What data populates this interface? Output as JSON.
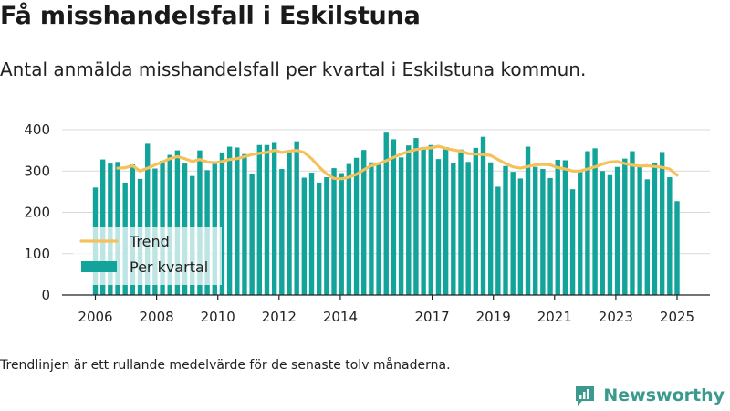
{
  "header": {
    "title": "Få misshandelsfall i Eskilstuna",
    "subtitle": "Antal anmälda misshandelsfall per kvartal i Eskilstuna kommun."
  },
  "footnote": "Trendlinjen är ett rullande medelvärde för de senaste tolv månaderna.",
  "brand": {
    "name": "Newsworthy",
    "icon": "newsworthy-logo-icon",
    "color": "#3a9a8d"
  },
  "colors": {
    "bar": "#12a39a",
    "trend": "#f5c15a",
    "grid": "#d9d9d9",
    "axis": "#222222"
  },
  "chart_data": {
    "type": "bar",
    "title": "",
    "xlabel": "",
    "ylabel": "",
    "ylim": [
      0,
      400
    ],
    "yticks": [
      "0",
      "100",
      "200",
      "300",
      "400"
    ],
    "xticks": [
      "2006",
      "2008",
      "2010",
      "2012",
      "2014",
      "2017",
      "2019",
      "2021",
      "2023",
      "2025"
    ],
    "legend": {
      "position": "bottom-left",
      "entries": [
        "Trend",
        "Per kvartal"
      ]
    },
    "grid": true,
    "series": [
      {
        "name": "Per kvartal",
        "type": "bar",
        "values": [
          260,
          328,
          318,
          322,
          272,
          316,
          281,
          366,
          306,
          325,
          339,
          350,
          318,
          288,
          350,
          302,
          317,
          345,
          359,
          357,
          341,
          293,
          363,
          363,
          368,
          305,
          350,
          372,
          284,
          296,
          272,
          285,
          307,
          295,
          317,
          332,
          351,
          321,
          316,
          393,
          377,
          333,
          362,
          380,
          358,
          363,
          329,
          358,
          319,
          352,
          322,
          356,
          383,
          321,
          262,
          312,
          298,
          282,
          359,
          310,
          305,
          283,
          327,
          326,
          256,
          300,
          348,
          355,
          300,
          290,
          310,
          330,
          348,
          315,
          280,
          320,
          346,
          285,
          227
        ]
      },
      {
        "name": "Trend",
        "type": "line",
        "values": [
          null,
          null,
          null,
          307,
          308,
          313,
          300,
          307,
          315,
          322,
          330,
          335,
          330,
          323,
          328,
          322,
          320,
          323,
          328,
          330,
          335,
          340,
          343,
          345,
          350,
          345,
          348,
          350,
          345,
          330,
          310,
          293,
          282,
          281,
          285,
          292,
          303,
          313,
          318,
          325,
          333,
          341,
          347,
          352,
          355,
          356,
          360,
          355,
          351,
          348,
          342,
          341,
          340,
          338,
          328,
          318,
          310,
          307,
          311,
          315,
          316,
          315,
          308,
          305,
          300,
          300,
          305,
          310,
          317,
          322,
          323,
          318,
          314,
          312,
          313,
          311,
          309,
          305,
          290
        ]
      }
    ]
  }
}
